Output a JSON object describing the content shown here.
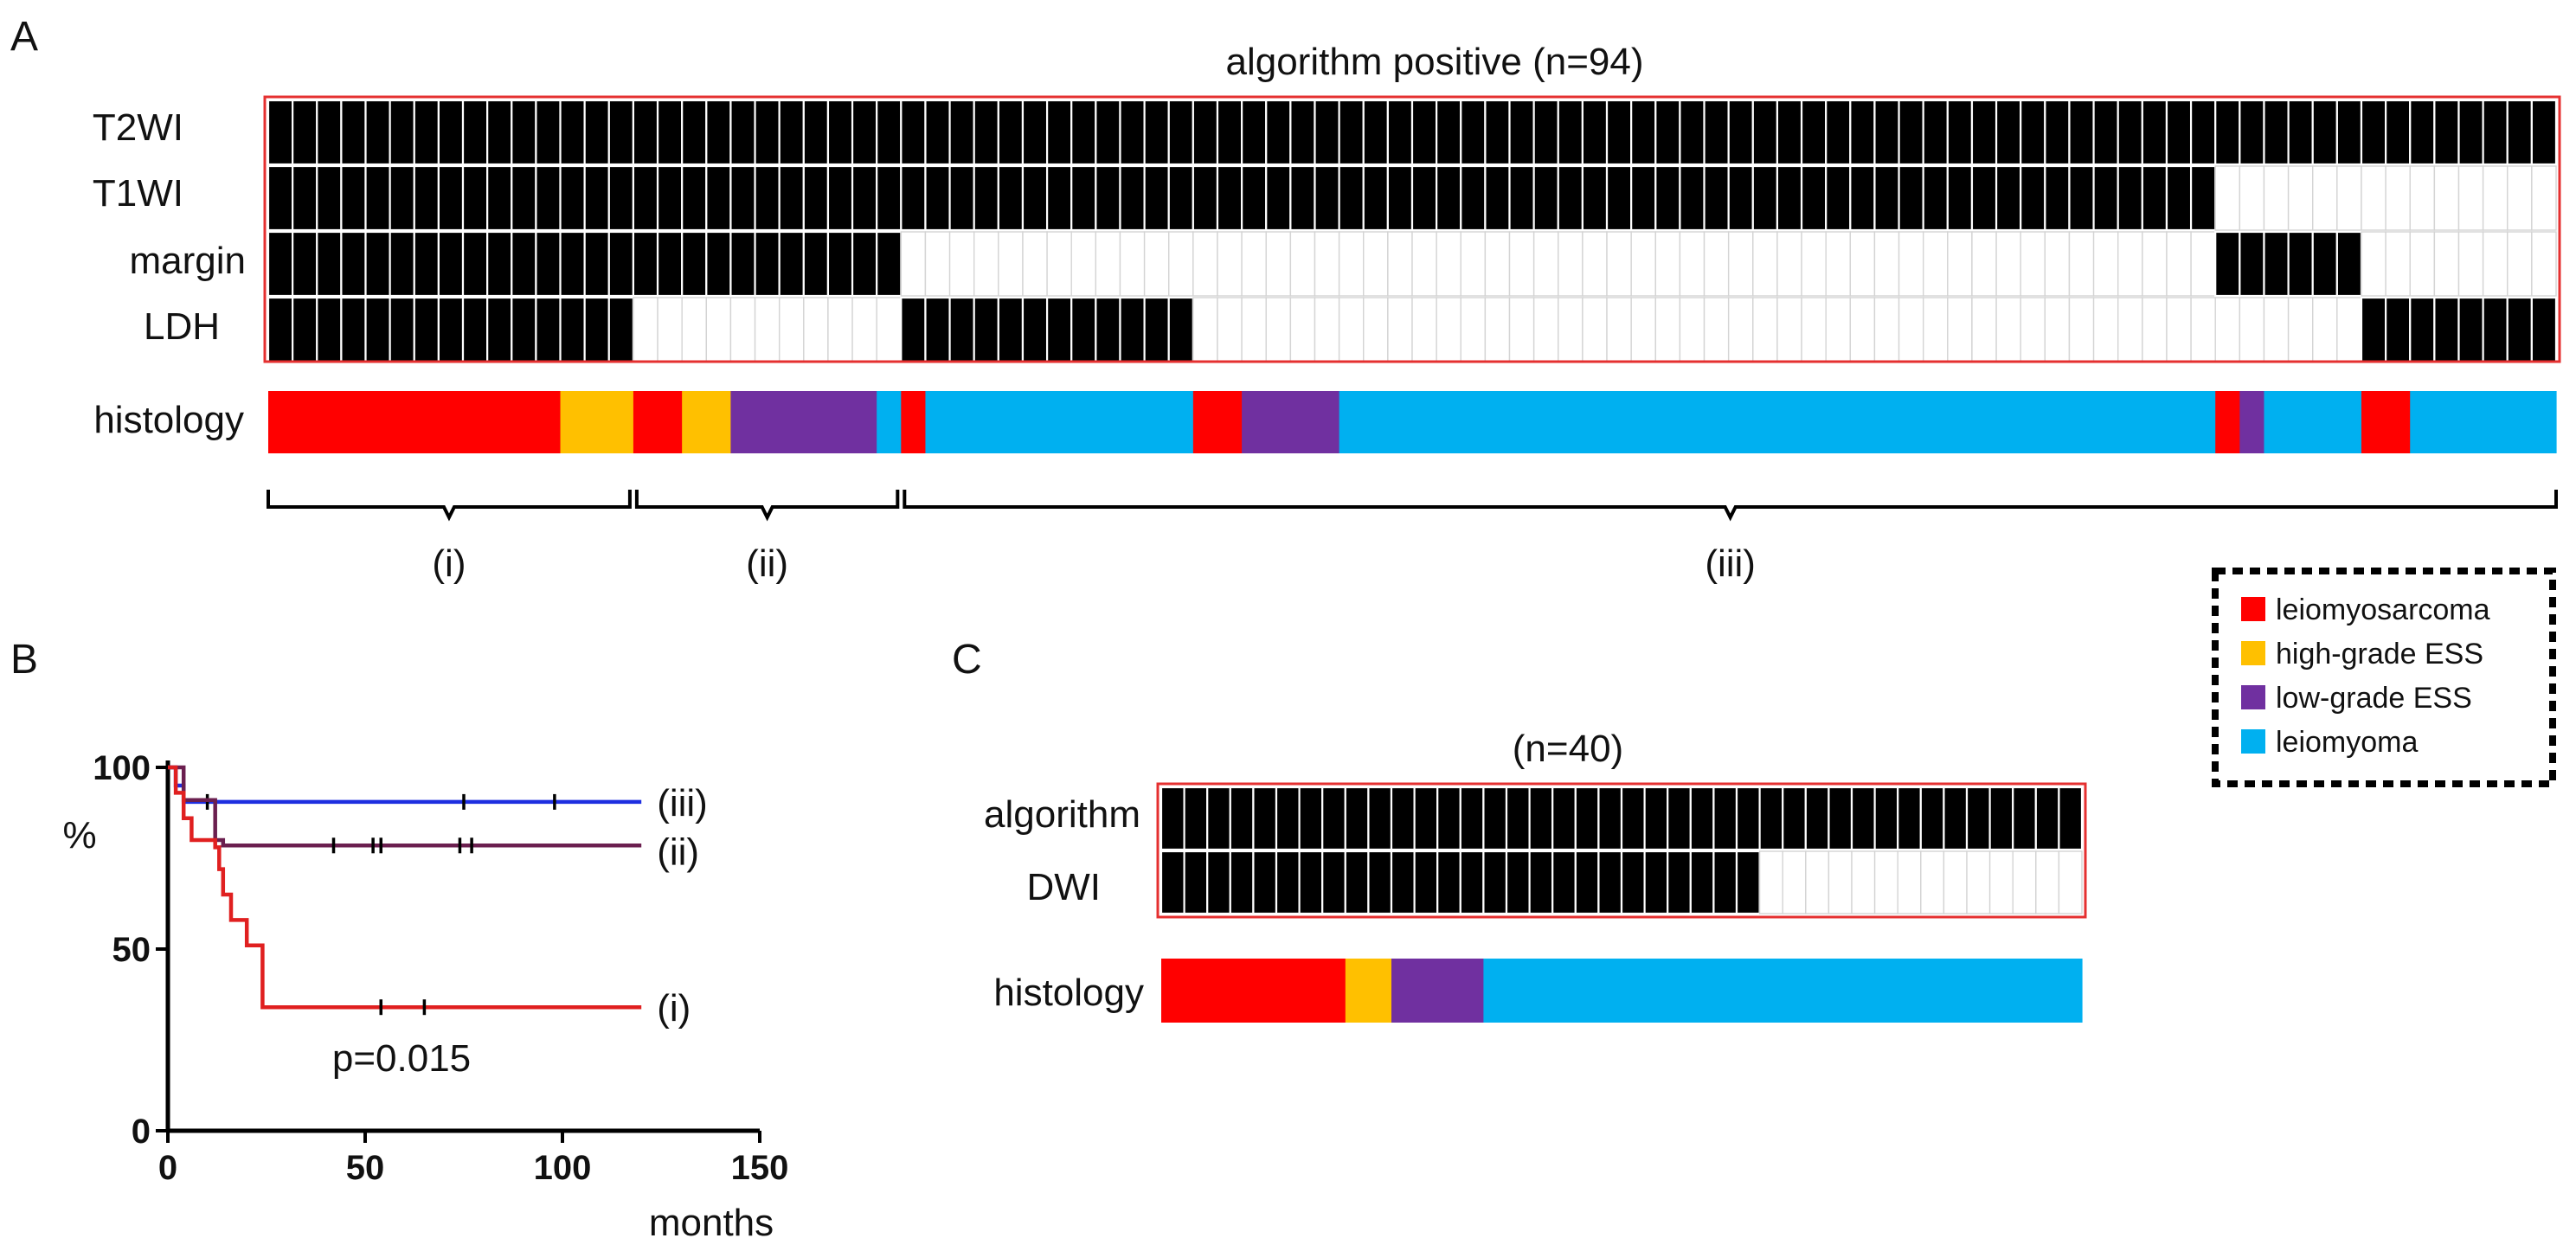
{
  "colors": {
    "leiomyosarcoma": "#ff0000",
    "high_grade_ESS": "#ffc000",
    "low_grade_ESS": "#7030a0",
    "leiomyoma": "#00b0f0",
    "box_border": "#e53030",
    "curve_i": "#e02020",
    "curve_ii": "#6b1f4f",
    "curve_iii": "#1e2ee0"
  },
  "chart_data": [
    {
      "type": "heatmap",
      "panel": "A",
      "title": "algorithm positive (n=94)",
      "n": 94,
      "rows": [
        {
          "label": "T2WI",
          "positive_ranges": [
            [
              0,
              94
            ]
          ]
        },
        {
          "label": "T1WI",
          "positive_ranges": [
            [
              0,
              80
            ]
          ]
        },
        {
          "label": "margin",
          "positive_ranges": [
            [
              0,
              26
            ],
            [
              80,
              86
            ]
          ]
        },
        {
          "label": "LDH",
          "positive_ranges": [
            [
              0,
              15
            ],
            [
              26,
              38
            ],
            [
              86,
              94
            ]
          ]
        }
      ],
      "histology_label": "histology",
      "histology_segments": [
        {
          "type": "leiomyosarcoma",
          "count": 12
        },
        {
          "type": "high_grade_ESS",
          "count": 3
        },
        {
          "type": "leiomyosarcoma",
          "count": 2
        },
        {
          "type": "high_grade_ESS",
          "count": 2
        },
        {
          "type": "low_grade_ESS",
          "count": 6
        },
        {
          "type": "leiomyoma",
          "count": 1
        },
        {
          "type": "leiomyosarcoma",
          "count": 1
        },
        {
          "type": "leiomyoma",
          "count": 11
        },
        {
          "type": "leiomyosarcoma",
          "count": 2
        },
        {
          "type": "low_grade_ESS",
          "count": 4
        },
        {
          "type": "leiomyoma",
          "count": 36
        },
        {
          "type": "leiomyosarcoma",
          "count": 1
        },
        {
          "type": "low_grade_ESS",
          "count": 1
        },
        {
          "type": "leiomyoma",
          "count": 4
        },
        {
          "type": "leiomyosarcoma",
          "count": 2
        },
        {
          "type": "leiomyoma",
          "count": 6
        }
      ],
      "groups": [
        {
          "label": "(i)",
          "range": [
            0,
            15
          ]
        },
        {
          "label": "(ii)",
          "range": [
            15,
            26
          ]
        },
        {
          "label": "(iii)",
          "range": [
            26,
            94
          ]
        }
      ]
    },
    {
      "type": "line",
      "panel": "B",
      "subtype": "kaplan-meier",
      "xlabel": "months",
      "ylabel": "%",
      "xlim": [
        0,
        150
      ],
      "ylim": [
        0,
        100
      ],
      "xticks": [
        0,
        50,
        100,
        150
      ],
      "yticks": [
        0,
        50,
        100
      ],
      "annotation": "p=0.015",
      "series": [
        {
          "name": "(iii)",
          "color_key": "curve_iii",
          "steps": [
            [
              0,
              100
            ],
            [
              2,
              95
            ],
            [
              4,
              90.5
            ],
            [
              120,
              90.5
            ]
          ],
          "censor_x": [
            10,
            75,
            98
          ]
        },
        {
          "name": "(ii)",
          "color_key": "curve_ii",
          "steps": [
            [
              0,
              100
            ],
            [
              4,
              91
            ],
            [
              12,
              80
            ],
            [
              14,
              78.5
            ],
            [
              120,
              78.5
            ]
          ],
          "censor_x": [
            42,
            52,
            54,
            74,
            77
          ]
        },
        {
          "name": "(i)",
          "color_key": "curve_i",
          "steps": [
            [
              0,
              100
            ],
            [
              2,
              93
            ],
            [
              4,
              86
            ],
            [
              6,
              80
            ],
            [
              12,
              78
            ],
            [
              13,
              72
            ],
            [
              14,
              65
            ],
            [
              16,
              58
            ],
            [
              20,
              51
            ],
            [
              24,
              34
            ],
            [
              120,
              34
            ]
          ],
          "censor_x": [
            54,
            65
          ]
        }
      ]
    },
    {
      "type": "heatmap",
      "panel": "C",
      "title": "(n=40)",
      "n": 40,
      "rows": [
        {
          "label": "algorithm",
          "positive_ranges": [
            [
              0,
              40
            ]
          ]
        },
        {
          "label": "DWI",
          "positive_ranges": [
            [
              0,
              26
            ]
          ]
        }
      ],
      "histology_label": "histology",
      "histology_segments": [
        {
          "type": "leiomyosarcoma",
          "count": 8
        },
        {
          "type": "high_grade_ESS",
          "count": 2
        },
        {
          "type": "low_grade_ESS",
          "count": 4
        },
        {
          "type": "leiomyoma",
          "count": 26
        }
      ]
    }
  ],
  "panel_labels": {
    "a": "A",
    "b": "B",
    "c": "C"
  },
  "legend": [
    {
      "key": "leiomyosarcoma",
      "label": "leiomyosarcoma"
    },
    {
      "key": "high_grade_ESS",
      "label": "high-grade ESS"
    },
    {
      "key": "low_grade_ESS",
      "label": "low-grade ESS"
    },
    {
      "key": "leiomyoma",
      "label": "leiomyoma"
    }
  ]
}
